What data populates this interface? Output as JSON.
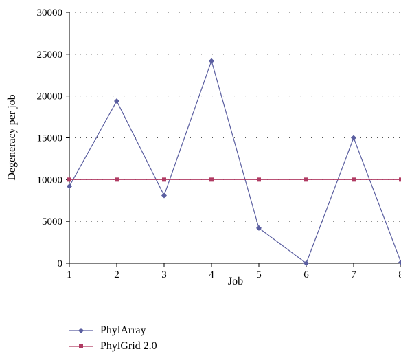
{
  "chart_data": {
    "type": "line",
    "title": "",
    "xlabel": "Job",
    "ylabel": "Degeneracy per job",
    "x": [
      1,
      2,
      3,
      4,
      5,
      6,
      7,
      8
    ],
    "ylim": [
      0,
      30000
    ],
    "yticks": [
      0,
      5000,
      10000,
      15000,
      20000,
      25000,
      30000
    ],
    "grid": "horizontal dotted",
    "legend_position": "bottom-left",
    "series": [
      {
        "name": "PhylArray",
        "marker": "diamond",
        "color": "#5a5ea0",
        "values": [
          9200,
          19400,
          8100,
          24200,
          4200,
          0,
          15000,
          100
        ]
      },
      {
        "name": "PhylGrid 2.0",
        "marker": "square",
        "color": "#b03a62",
        "values": [
          10000,
          10000,
          10000,
          10000,
          10000,
          10000,
          10000,
          10000
        ]
      }
    ]
  }
}
